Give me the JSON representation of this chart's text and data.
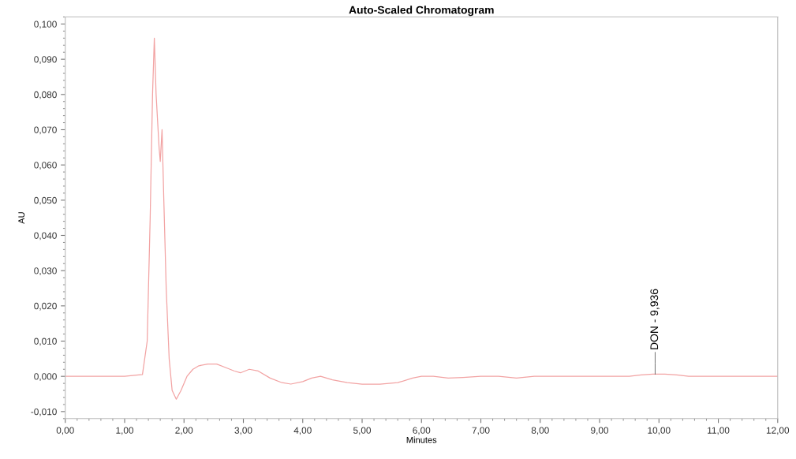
{
  "chart_data": {
    "type": "line",
    "title": "Auto-Scaled Chromatogram",
    "xlabel": "Minutes",
    "ylabel": "AU",
    "x": [
      0,
      0.5,
      1.0,
      1.3,
      1.38,
      1.43,
      1.47,
      1.5,
      1.53,
      1.56,
      1.58,
      1.6,
      1.63,
      1.66,
      1.7,
      1.75,
      1.8,
      1.87,
      1.95,
      2.05,
      2.15,
      2.25,
      2.4,
      2.55,
      2.7,
      2.85,
      2.95,
      3.1,
      3.25,
      3.45,
      3.65,
      3.8,
      4.0,
      4.15,
      4.3,
      4.5,
      4.75,
      5.0,
      5.3,
      5.6,
      5.85,
      6.0,
      6.2,
      6.45,
      6.7,
      7.0,
      7.3,
      7.6,
      7.9,
      8.3,
      9.0,
      9.5,
      9.7,
      9.9,
      10.1,
      10.3,
      10.5,
      11.0,
      12.0
    ],
    "series": [
      {
        "color": "#f2a3a3",
        "values": [
          0,
          0,
          0,
          0.0005,
          0.01,
          0.045,
          0.08,
          0.096,
          0.08,
          0.071,
          0.065,
          0.061,
          0.07,
          0.05,
          0.025,
          0.005,
          -0.004,
          -0.0065,
          -0.004,
          0.0,
          0.002,
          0.003,
          0.0035,
          0.0035,
          0.0025,
          0.0015,
          0.001,
          0.002,
          0.0015,
          -0.0005,
          -0.0018,
          -0.0022,
          -0.0015,
          -0.0005,
          0.0,
          -0.001,
          -0.0018,
          -0.0022,
          -0.0022,
          -0.0018,
          -0.0005,
          0.0,
          0.0,
          -0.0005,
          -0.0003,
          0.0,
          0.0,
          -0.0005,
          0.0,
          0.0,
          0.0,
          0.0,
          0.0004,
          0.0006,
          0.0006,
          0.0004,
          0.0,
          0.0,
          0.0
        ]
      }
    ],
    "annotations": [
      {
        "text": "DON - 9,936",
        "x": 9.936,
        "y": 0.0006
      }
    ],
    "xlim": [
      0,
      12
    ],
    "ylim": [
      -0.012,
      0.102
    ],
    "xticks": [
      {
        "value": 0,
        "label": "0,00"
      },
      {
        "value": 1,
        "label": "1,00"
      },
      {
        "value": 2,
        "label": "2,00"
      },
      {
        "value": 3,
        "label": "3,00"
      },
      {
        "value": 4,
        "label": "4,00"
      },
      {
        "value": 5,
        "label": "5,00"
      },
      {
        "value": 6,
        "label": "6,00"
      },
      {
        "value": 7,
        "label": "7,00"
      },
      {
        "value": 8,
        "label": "8,00"
      },
      {
        "value": 9,
        "label": "9,00"
      },
      {
        "value": 10,
        "label": "10,00"
      },
      {
        "value": 11,
        "label": "11,00"
      },
      {
        "value": 12,
        "label": "12,00"
      }
    ],
    "yticks": [
      {
        "value": -0.01,
        "label": "-0,010"
      },
      {
        "value": 0,
        "label": "0,000"
      },
      {
        "value": 0.01,
        "label": "0,010"
      },
      {
        "value": 0.02,
        "label": "0,020"
      },
      {
        "value": 0.03,
        "label": "0,030"
      },
      {
        "value": 0.04,
        "label": "0,040"
      },
      {
        "value": 0.05,
        "label": "0,050"
      },
      {
        "value": 0.06,
        "label": "0,060"
      },
      {
        "value": 0.07,
        "label": "0,070"
      },
      {
        "value": 0.08,
        "label": "0,080"
      },
      {
        "value": 0.09,
        "label": "0,090"
      },
      {
        "value": 0.1,
        "label": "0,100"
      }
    ],
    "grid": false,
    "legend": false,
    "marker": "none",
    "line_style": "solid"
  }
}
